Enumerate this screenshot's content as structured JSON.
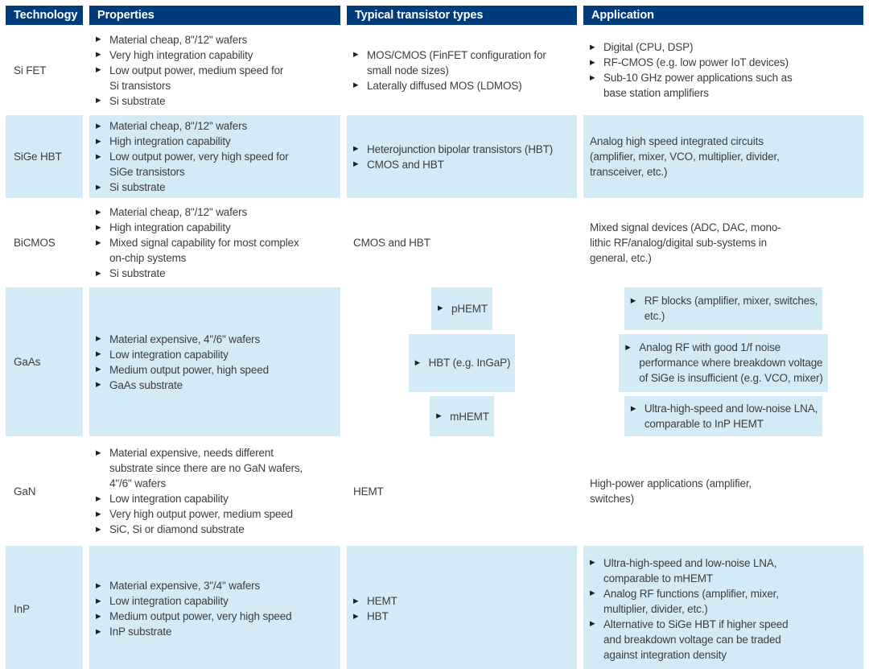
{
  "colors": {
    "header_bg": "#003c7c",
    "header_text": "#ffffff",
    "row_blue_bg": "#d3eaf7",
    "row_white_bg": "#ffffff",
    "body_text": "#3d3d3d"
  },
  "bullet_icon": "▶",
  "table": {
    "columns": [
      "Technology",
      "Properties",
      "Typical transistor types",
      "Application"
    ],
    "rows": [
      {
        "technology": "Si FET",
        "shade": "white",
        "properties": {
          "type": "bullets",
          "items": [
            "Material cheap, 8\"/12\" wafers",
            "Very high integration capability",
            "Low output power, medium speed for\nSi transistors",
            "Si substrate"
          ]
        },
        "transistor_types": {
          "type": "bullets",
          "items": [
            "MOS/CMOS (FinFET configuration for\nsmall node sizes)",
            "Laterally diffused MOS (LDMOS)"
          ]
        },
        "application": {
          "type": "bullets",
          "items": [
            "Digital (CPU, DSP)",
            "RF-CMOS (e.g. low power IoT devices)",
            "Sub-10 GHz power applications such as\nbase station amplifiers"
          ]
        }
      },
      {
        "technology": "SiGe HBT",
        "shade": "blue",
        "properties": {
          "type": "bullets",
          "items": [
            "Material cheap, 8\"/12\" wafers",
            "High integration capability",
            "Low output power, very high speed for\nSiGe transistors",
            "Si substrate"
          ]
        },
        "transistor_types": {
          "type": "bullets",
          "items": [
            "Heterojunction bipolar transistors (HBT)",
            "CMOS and HBT"
          ]
        },
        "application": {
          "type": "text",
          "value": "Analog high speed integrated circuits\n(amplifier, mixer, VCO, multiplier, divider,\ntransceiver, etc.)"
        }
      },
      {
        "technology": "BiCMOS",
        "shade": "white",
        "properties": {
          "type": "bullets",
          "items": [
            "Material cheap, 8\"/12\" wafers",
            "High integration capability",
            "Mixed signal capability for most complex\non-chip systems",
            "Si substrate"
          ]
        },
        "transistor_types": {
          "type": "text",
          "value": "CMOS and HBT"
        },
        "application": {
          "type": "text",
          "value": "Mixed signal devices (ADC, DAC, mono-\nlithic RF/analog/digital sub-systems in\ngeneral, etc.)"
        }
      },
      {
        "technology": "GaAs",
        "shade": "blue",
        "properties": {
          "type": "bullets",
          "items": [
            "Material expensive, 4\"/6\" wafers",
            "Low integration capability",
            "Medium output power, high speed",
            "GaAs substrate"
          ]
        },
        "transistor_types": {
          "type": "subrows",
          "cells": [
            {
              "type": "bullets",
              "items": [
                "pHEMT"
              ]
            },
            {
              "type": "bullets",
              "items": [
                "HBT (e.g. InGaP)"
              ]
            },
            {
              "type": "bullets",
              "items": [
                "mHEMT"
              ]
            }
          ]
        },
        "application": {
          "type": "subrows",
          "cells": [
            {
              "type": "bullets",
              "items": [
                "RF blocks (amplifier, mixer, switches,\netc.)"
              ]
            },
            {
              "type": "bullets",
              "items": [
                "Analog RF with good 1/f noise\nperformance where breakdown voltage\nof SiGe is insufficient (e.g. VCO, mixer)"
              ]
            },
            {
              "type": "bullets",
              "items": [
                "Ultra-high-speed and low-noise LNA,\ncomparable to InP HEMT"
              ]
            }
          ]
        }
      },
      {
        "technology": "GaN",
        "shade": "white",
        "properties": {
          "type": "bullets",
          "items": [
            "Material expensive, needs different\nsubstrate since there are no GaN wafers,\n4\"/6\" wafers",
            "Low integration capability",
            "Very high output power, medium speed",
            "SiC, Si or diamond substrate"
          ]
        },
        "transistor_types": {
          "type": "text",
          "value": "HEMT"
        },
        "application": {
          "type": "text",
          "value": "High-power applications (amplifier,\nswitches)"
        }
      },
      {
        "technology": "InP",
        "shade": "blue",
        "properties": {
          "type": "bullets",
          "items": [
            "Material expensive, 3\"/4\" wafers",
            "Low integration capability",
            "Medium output power, very high speed",
            "InP substrate"
          ]
        },
        "transistor_types": {
          "type": "bullets",
          "items": [
            "HEMT",
            "HBT"
          ]
        },
        "application": {
          "type": "bullets",
          "items": [
            "Ultra-high-speed and low-noise LNA,\ncomparable to mHEMT",
            "Analog RF functions (amplifier, mixer,\nmultiplier, divider, etc.)",
            "Alternative to SiGe HBT if higher speed\nand breakdown voltage can be traded\nagainst integration density"
          ]
        }
      }
    ]
  }
}
